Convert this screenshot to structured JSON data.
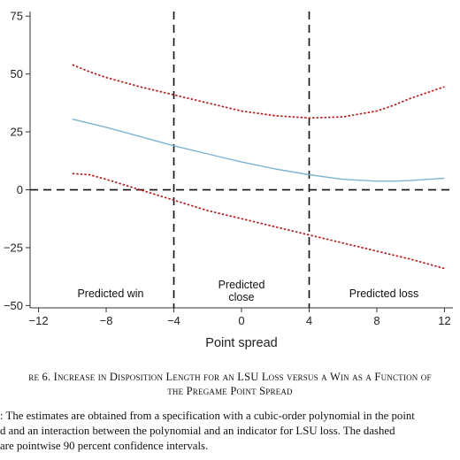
{
  "chart_data": {
    "type": "line",
    "xlabel": "Point spread",
    "ylabel": "",
    "xlim": [
      -12.5,
      12.5
    ],
    "ylim": [
      -51,
      77
    ],
    "xticks": [
      -12,
      -8,
      -4,
      0,
      4,
      8,
      12
    ],
    "yticks": [
      -50,
      -25,
      0,
      25,
      50,
      75
    ],
    "xtick_labels": [
      "−12",
      "−8",
      "−4",
      "0",
      "4",
      "8",
      "12"
    ],
    "ytick_labels": [
      "−50",
      "−25",
      "0",
      "25",
      "50",
      "75"
    ],
    "grid": false,
    "reference_lines": {
      "vertical_dashed": [
        -4,
        4
      ],
      "horizontal_dashed": [
        0
      ]
    },
    "series": [
      {
        "style": "solid",
        "color": "#7db3d0",
        "x": [
          -10,
          -8,
          -6,
          -4,
          -2,
          0,
          2,
          4,
          6,
          8,
          9,
          10,
          12
        ],
        "y": [
          30.5,
          27,
          23,
          19,
          15.5,
          12,
          9,
          6.5,
          4.5,
          3.7,
          3.7,
          4,
          5
        ]
      },
      {
        "style": "dotted",
        "color": "#b22222",
        "x": [
          -10,
          -9,
          -8,
          -6,
          -4,
          -2,
          0,
          2,
          4,
          6,
          8,
          9,
          10,
          12
        ],
        "y": [
          54,
          51,
          48.5,
          44.5,
          41,
          37.5,
          34,
          32,
          31,
          31.5,
          34,
          36.5,
          39.5,
          44.5
        ]
      },
      {
        "style": "dotted",
        "color": "#b22222",
        "x": [
          -10,
          -9,
          -8,
          -6,
          -4,
          -2,
          0,
          2,
          4,
          6,
          8,
          10,
          12
        ],
        "y": [
          7,
          6.5,
          4.5,
          0,
          -4.5,
          -9,
          -12.5,
          -16,
          -19.5,
          -23,
          -26.5,
          -30,
          -34
        ]
      }
    ],
    "annotations": [
      {
        "text": "Predicted win",
        "x": -9.3,
        "y": -40
      },
      {
        "text": "Predicted close",
        "x": 0,
        "y": -40
      },
      {
        "text": "Predicted loss",
        "x": 8.3,
        "y": -40
      }
    ]
  },
  "caption": {
    "title_line1": "re 6. Increase in Disposition Length for an LSU Loss versus a Win as a Function of",
    "title_line2": "the Pregame Point Spread",
    "note_line1": ": The estimates are obtained from a specification with a cubic-order polynomial in the point",
    "note_line2": "d and an interaction between the polynomial and an indicator for LSU loss. The dashed",
    "note_line3": "are pointwise 90 percent confidence intervals."
  },
  "regions": {
    "win": "Predicted win",
    "close_line1": "Predicted",
    "close_line2": "close",
    "loss": "Predicted loss"
  }
}
